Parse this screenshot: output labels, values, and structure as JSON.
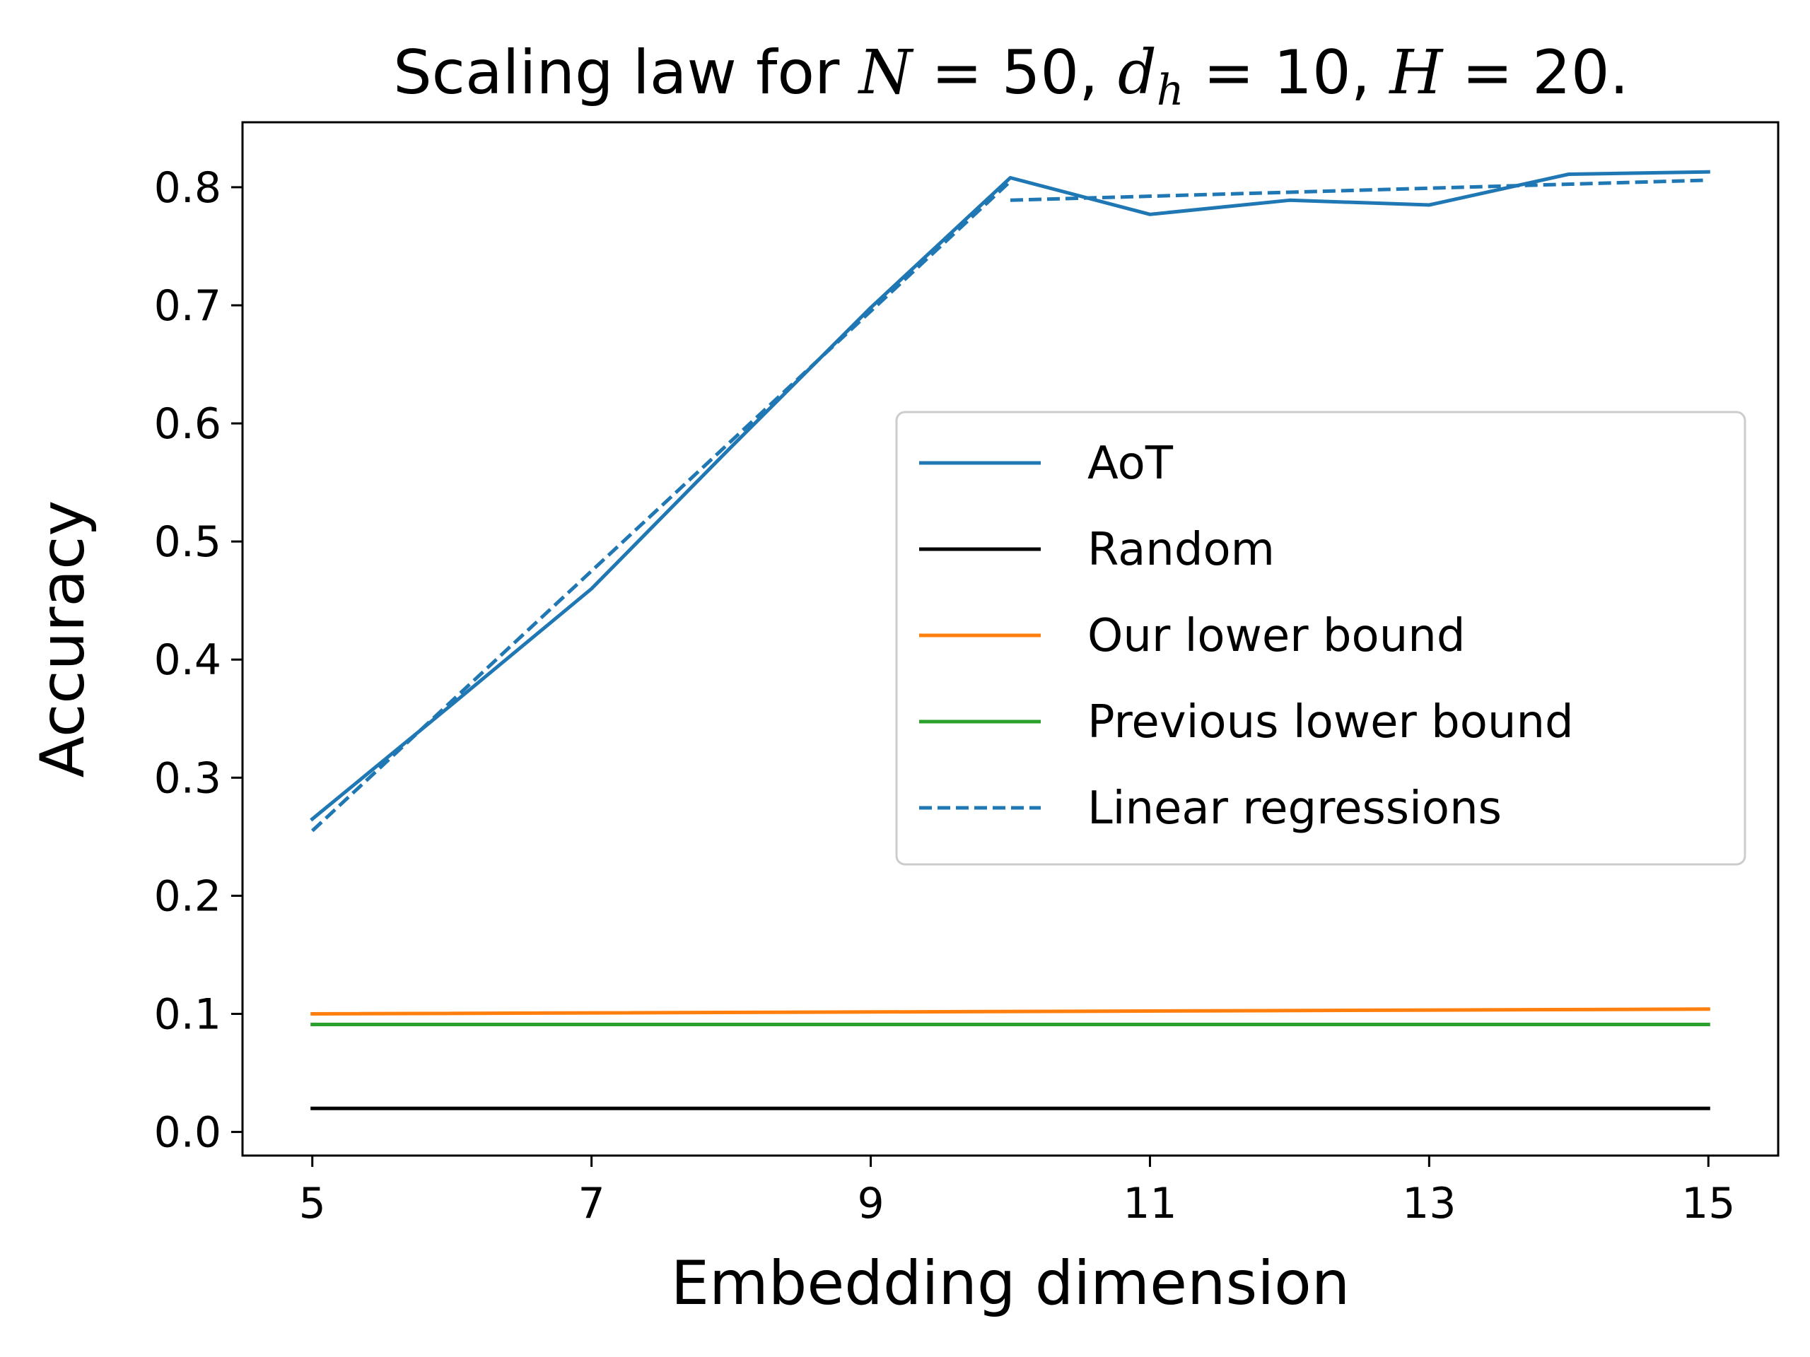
{
  "chart_data": {
    "type": "line",
    "title": {
      "prefix": "Scaling law for ",
      "var_n": "N",
      "eq_n": " = 50, ",
      "var_d": "d",
      "sub_h": "h",
      "eq_d": " = 10, ",
      "var_h": "H",
      "eq_h": " = 20."
    },
    "xlabel": "Embedding dimension",
    "ylabel": "Accuracy",
    "xlim": [
      4.5,
      15.5
    ],
    "ylim": [
      -0.02,
      0.855
    ],
    "xticks": [
      5,
      7,
      9,
      11,
      13,
      15
    ],
    "xtick_labels": [
      "5",
      "7",
      "9",
      "11",
      "13",
      "15"
    ],
    "yticks": [
      0.0,
      0.1,
      0.2,
      0.3,
      0.4,
      0.5,
      0.6,
      0.7,
      0.8
    ],
    "ytick_labels": [
      "0.0",
      "0.1",
      "0.2",
      "0.3",
      "0.4",
      "0.5",
      "0.6",
      "0.7",
      "0.8"
    ],
    "legend_position": "center-right",
    "series": [
      {
        "name": "AoT",
        "color": "#1f77b4",
        "dash": "solid",
        "x": [
          5,
          6,
          7,
          8,
          9,
          10,
          11,
          12,
          13,
          14,
          15
        ],
        "y": [
          0.265,
          0.362,
          0.46,
          0.58,
          0.698,
          0.808,
          0.777,
          0.789,
          0.785,
          0.811,
          0.813
        ]
      },
      {
        "name": "Random",
        "color": "#000000",
        "dash": "solid",
        "x": [
          5,
          15
        ],
        "y": [
          0.02,
          0.02
        ]
      },
      {
        "name": "Our lower bound",
        "color": "#ff7f0e",
        "dash": "solid",
        "x": [
          5,
          15
        ],
        "y": [
          0.1,
          0.104
        ]
      },
      {
        "name": "Previous lower bound",
        "color": "#2ca02c",
        "dash": "solid",
        "x": [
          5,
          15
        ],
        "y": [
          0.091,
          0.091
        ]
      },
      {
        "name": "Linear regressions",
        "color": "#1f77b4",
        "dash": "dashed",
        "x": [
          5,
          10
        ],
        "y": [
          0.255,
          0.805
        ]
      },
      {
        "name": "",
        "color": "#1f77b4",
        "dash": "dashed",
        "x": [
          10,
          15
        ],
        "y": [
          0.789,
          0.806
        ]
      }
    ]
  }
}
